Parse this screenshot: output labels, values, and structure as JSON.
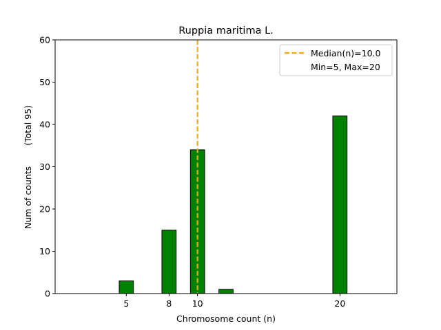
{
  "chart_data": {
    "type": "bar",
    "title": "Ruppia maritima L.",
    "xlabel": "Chromosome count (n)",
    "ylabel": "Num of counts",
    "ylabel_note": "(Total 95)",
    "x": [
      5,
      8,
      10,
      12,
      20
    ],
    "values": [
      3,
      15,
      34,
      1,
      42
    ],
    "bar_width": 1,
    "bar_color": "#008000",
    "edge_color": "#000000",
    "xticks": [
      5,
      8,
      10,
      20
    ],
    "yticks": [
      0,
      10,
      20,
      30,
      40,
      50,
      60
    ],
    "xlim": [
      0,
      24
    ],
    "ylim": [
      0,
      60
    ],
    "grid": false,
    "median": {
      "value": 10.0,
      "color": "#FFA500",
      "label": "Median(n)=10.0"
    },
    "legend": {
      "placement": "top-right",
      "entries": [
        "Median(n)=10.0",
        "Min=5, Max=20"
      ]
    }
  }
}
